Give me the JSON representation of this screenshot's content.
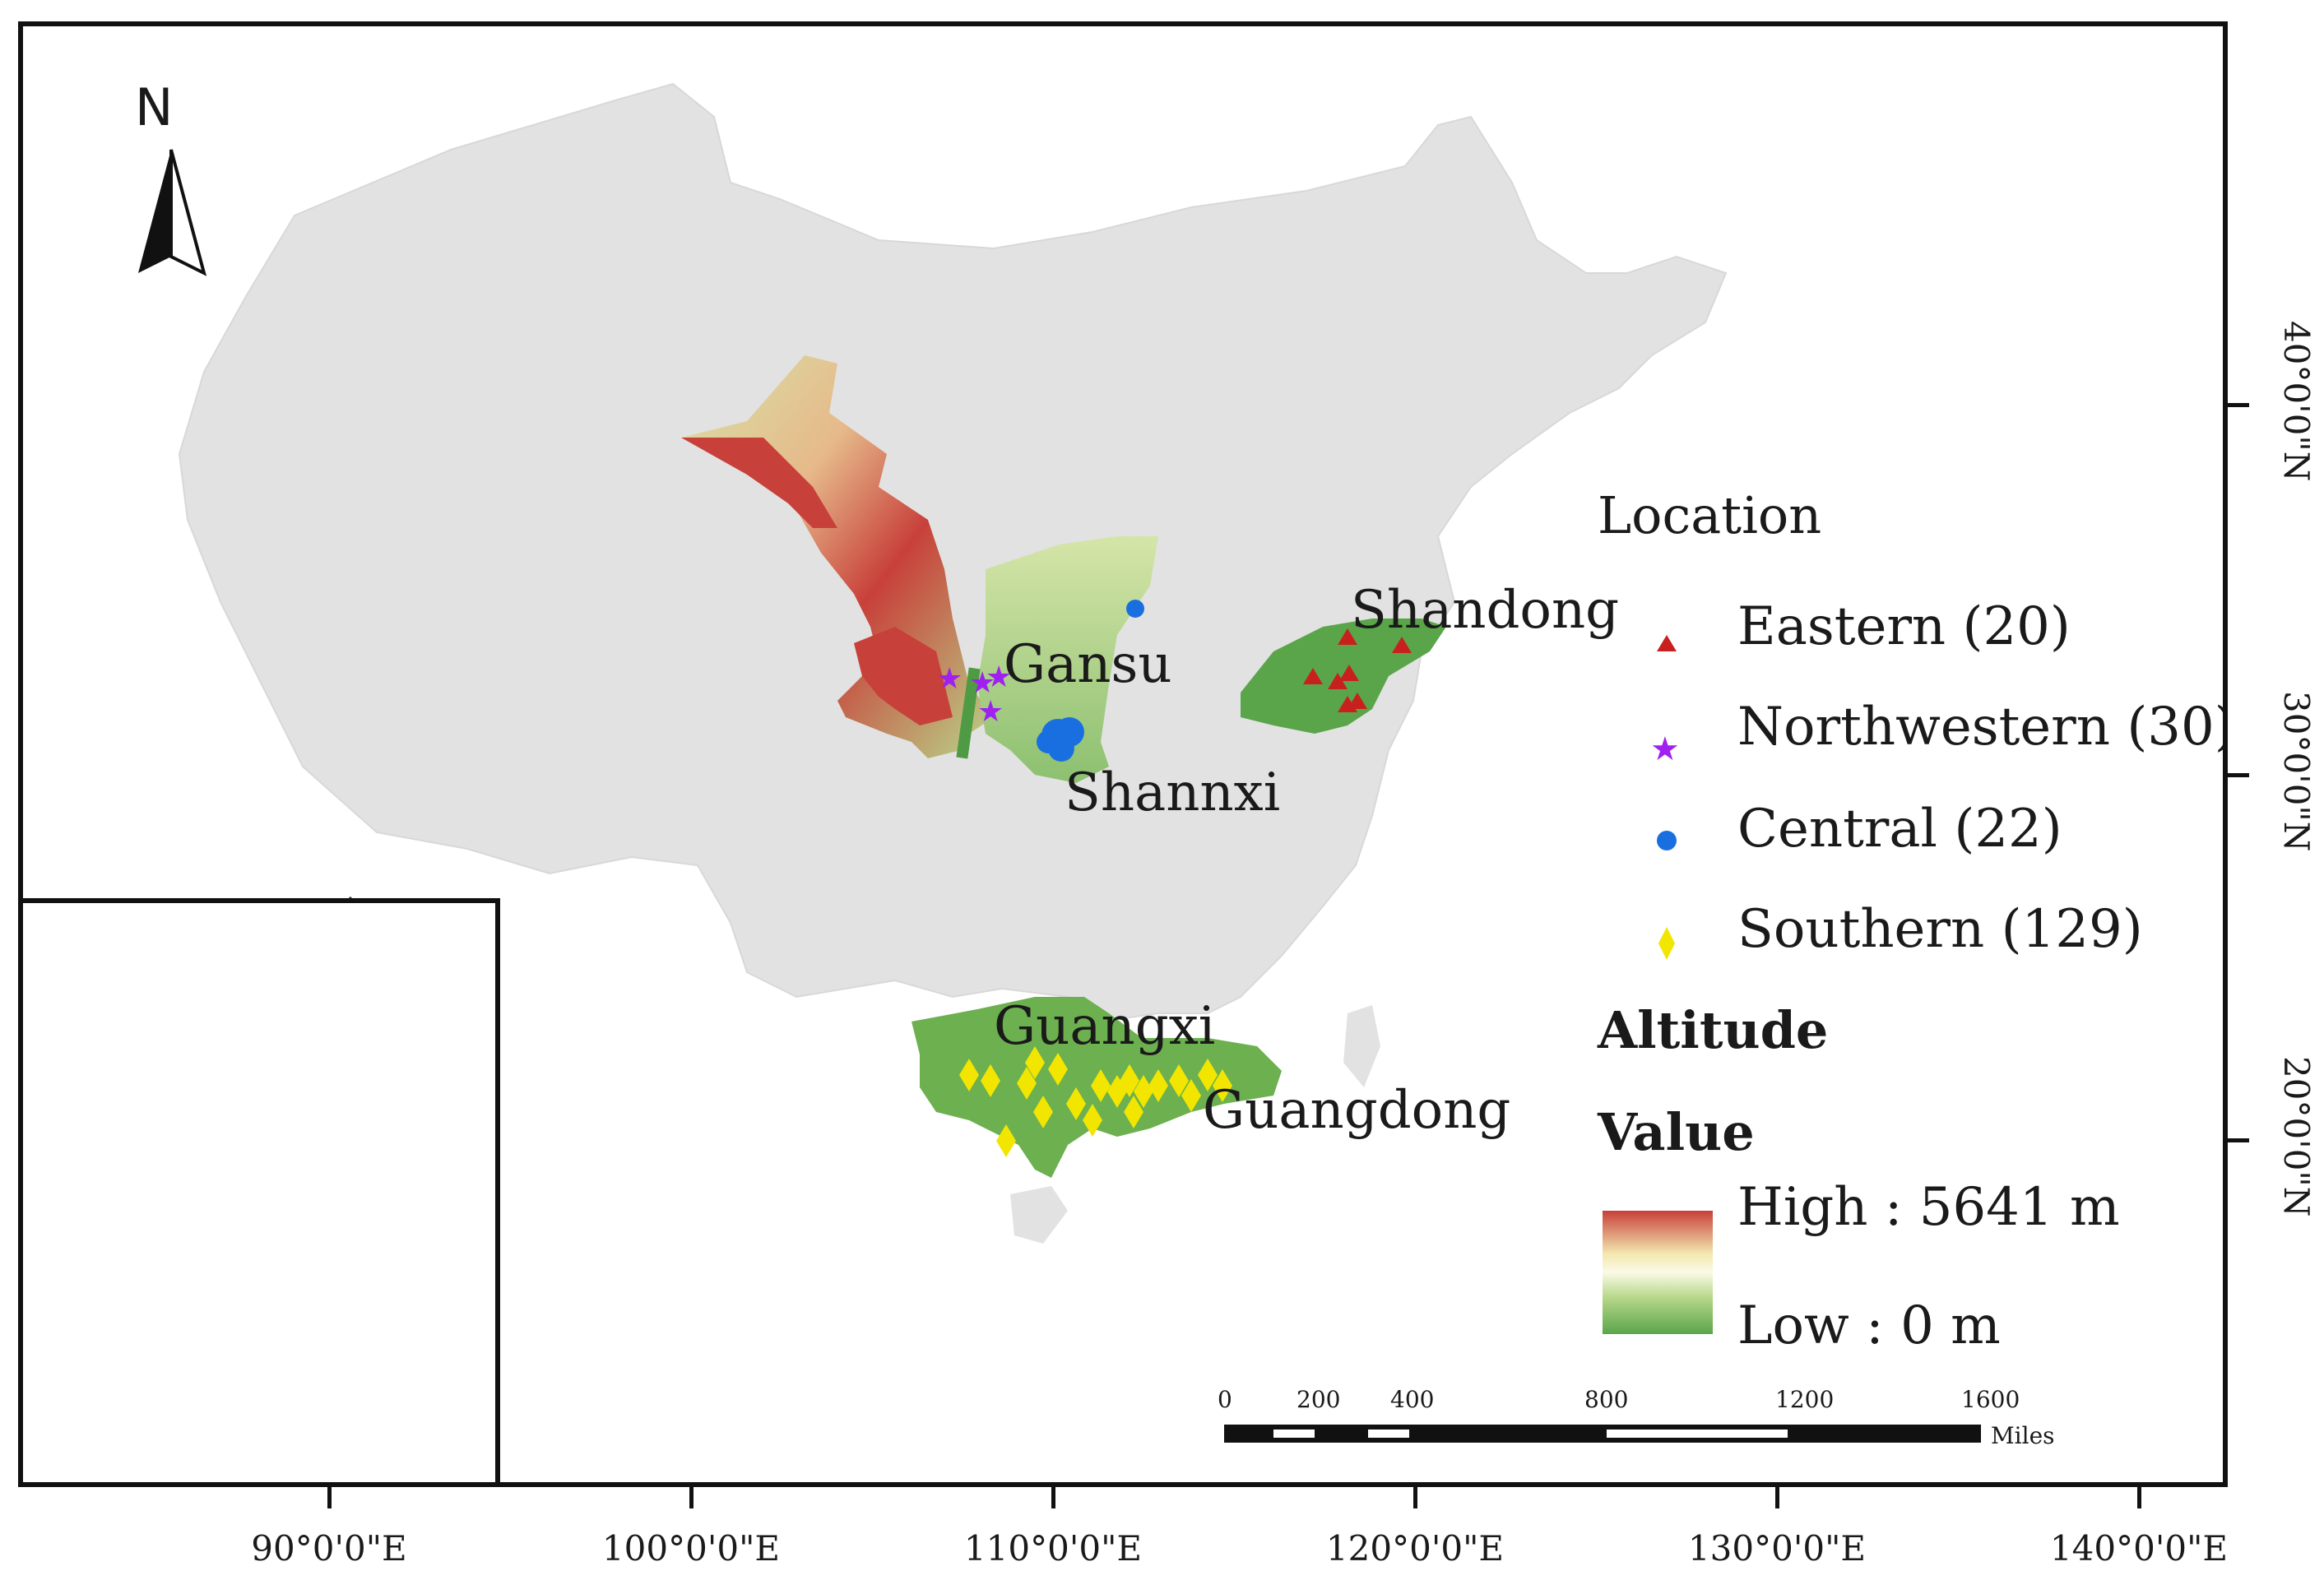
{
  "north_arrow": {
    "label": "N"
  },
  "provinces": {
    "gansu": "Gansu",
    "shannxi": "Shannxi",
    "shandong": "Shandong",
    "guangxi": "Guangxi",
    "guangdong": "Guangdong"
  },
  "legend": {
    "title": "Location",
    "items": [
      {
        "label": "Eastern (20)",
        "marker": "triangle",
        "color": "#c8201e"
      },
      {
        "label": "Northwestern (30)",
        "marker": "star",
        "color": "#a020f0"
      },
      {
        "label": "Central (22)",
        "marker": "circle",
        "color": "#1a6fe0"
      },
      {
        "label": "Southern (129)",
        "marker": "diamond",
        "color": "#f2e600"
      }
    ],
    "altitude_title": "Altitude",
    "value_title": "Value",
    "high_label": "High : 5641 m",
    "low_label": "Low : 0 m",
    "ramp_colors": [
      "#c8403a",
      "#f3e8b0",
      "#fbfae6",
      "#b8d88a",
      "#5aa54a"
    ]
  },
  "scale_bar": {
    "labels": [
      "0",
      "200",
      "400",
      "800",
      "1200",
      "1600"
    ],
    "unit": "Miles"
  },
  "longitude_labels": [
    "90°0'0\"E",
    "100°0'0\"E",
    "110°0'0\"E",
    "120°0'0\"E",
    "130°0'0\"E",
    "140°0'0\"E"
  ],
  "latitude_labels": [
    "40°0'0\"N",
    "30°0'0\"N",
    "20°0'0\"N"
  ],
  "colors": {
    "land": "#e2e2e2",
    "terrain_low": "#5aa54a",
    "terrain_mid": "#c9e3a0",
    "terrain_high": "#c8403a"
  }
}
